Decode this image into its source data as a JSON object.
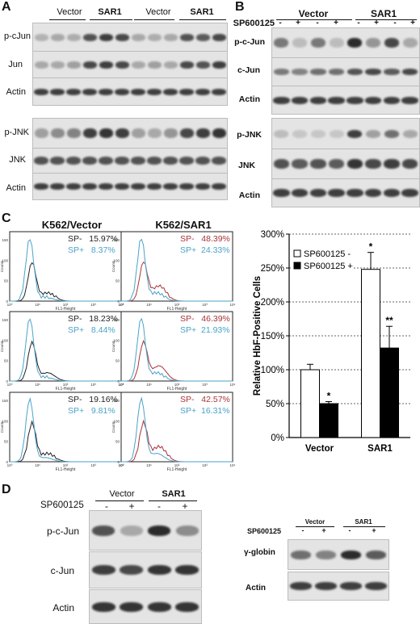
{
  "panelA": {
    "letter": "A",
    "groups": [
      "Vector",
      "SAR1",
      "Vector",
      "SAR1"
    ],
    "rows": [
      "p-cJun",
      "Jun",
      "Actin",
      "p-JNK",
      "JNK",
      "Actin"
    ]
  },
  "panelB": {
    "letter": "B",
    "treatment": "SP600125",
    "signs": [
      "-",
      "+",
      "-",
      "+",
      "-",
      "+",
      "-",
      "+"
    ],
    "groups": [
      "Vector",
      "SAR1"
    ],
    "rows": [
      "p-c-Jun",
      "c-Jun",
      "Actin",
      "p-JNK",
      "JNK",
      "Actin"
    ]
  },
  "panelC": {
    "letter": "C",
    "col_titles": [
      "K562/Vector",
      "K562/SAR1"
    ],
    "axis_y": "Counts",
    "axis_x": "FL1-Height",
    "ticks": [
      "10⁰",
      "10¹",
      "10²",
      "10³",
      "10⁴"
    ],
    "yticks": [
      "0",
      "50",
      "100",
      "150"
    ],
    "sp_minus": "SP-",
    "sp_plus": "SP+",
    "vector_values": [
      {
        "minus": "15.97%",
        "plus": "8.37%"
      },
      {
        "minus": "18.23%",
        "plus": "8.44%"
      },
      {
        "minus": "19.16%",
        "plus": "9.81%"
      }
    ],
    "sar1_values": [
      {
        "minus": "48.39%",
        "plus": "24.33%"
      },
      {
        "minus": "46.39%",
        "plus": "21.93%"
      },
      {
        "minus": "42.57%",
        "plus": "16.31%"
      }
    ],
    "colors": {
      "minus_vector": "#222222",
      "plus": "#4aa3c8",
      "minus_sar1": "#a8333a"
    }
  },
  "chart_data": {
    "type": "bar",
    "categories": [
      "Vector",
      "SAR1"
    ],
    "series": [
      {
        "name": "SP600125 -",
        "values": [
          100,
          248
        ],
        "errors": [
          8,
          25
        ],
        "color": "#ffffff"
      },
      {
        "name": "SP600125 +",
        "values": [
          50,
          132
        ],
        "errors": [
          3,
          32
        ],
        "color": "#000000"
      }
    ],
    "significance": [
      [
        "",
        "*"
      ],
      [
        "*",
        "**"
      ]
    ],
    "ylabel": "Relative HbF-Positive Cells",
    "yticks": [
      "0%",
      "50%",
      "100%",
      "150%",
      "200%",
      "250%",
      "300%"
    ],
    "ylim": [
      0,
      300
    ],
    "grid": true,
    "legend_position": "top-left"
  },
  "panelD": {
    "letter": "D",
    "treatment": "SP600125",
    "signs": [
      "-",
      "+",
      "-",
      "+"
    ],
    "groups": [
      "Vector",
      "SAR1"
    ],
    "rows": [
      "p-c-Jun",
      "c-Jun",
      "Actin"
    ],
    "right_rows": [
      "γ-globin",
      "Actin"
    ]
  }
}
